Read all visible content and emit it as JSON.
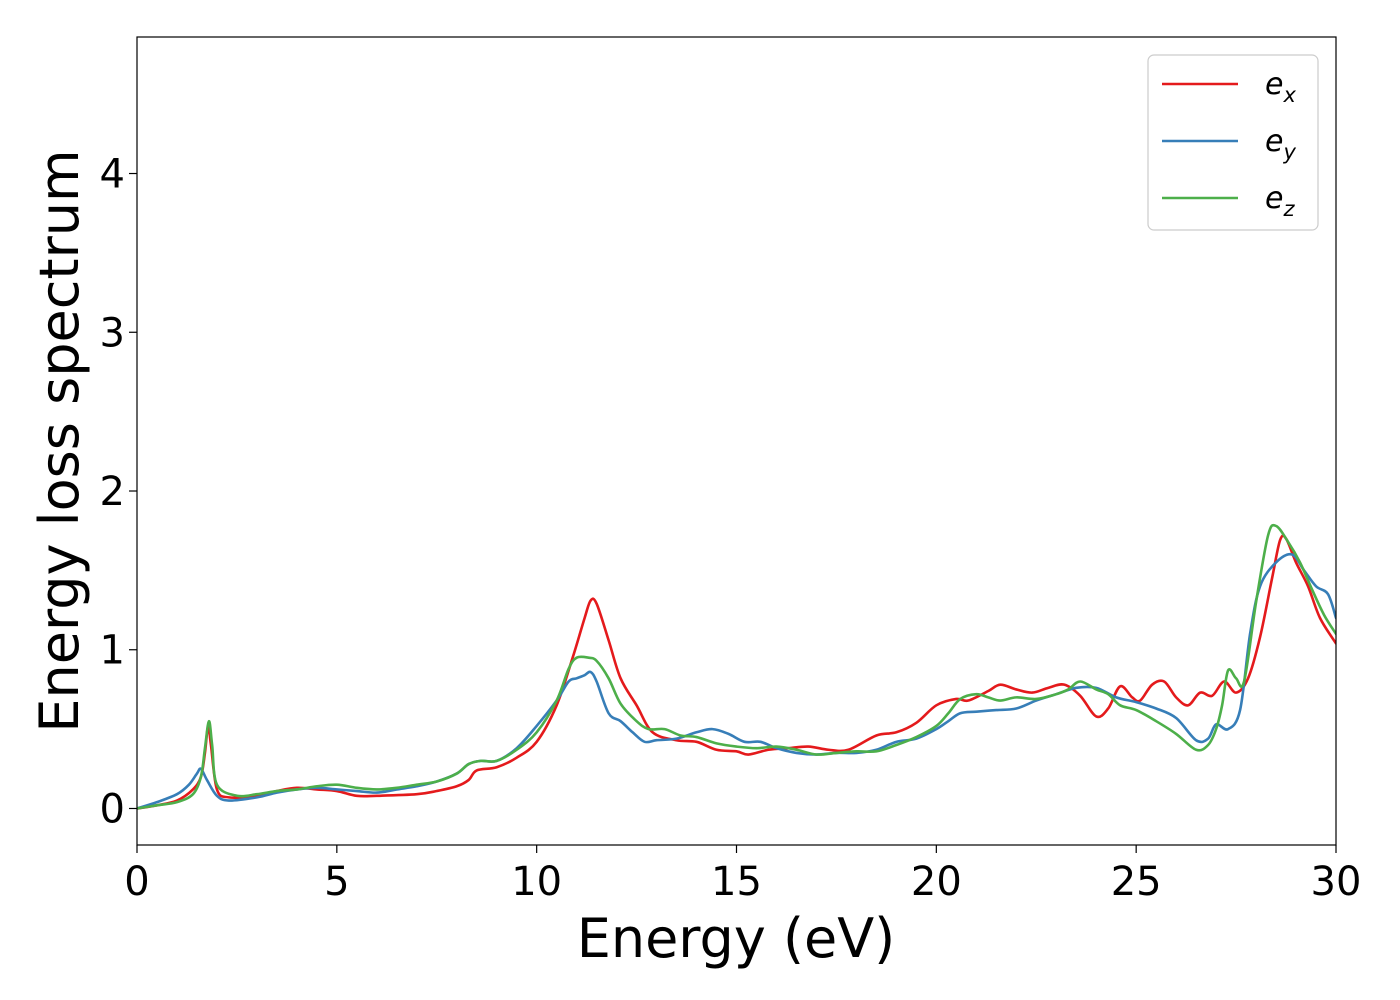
{
  "chart_data": {
    "type": "line",
    "xlabel": "Energy (eV)",
    "ylabel": "Energy loss spectrum",
    "xlim": [
      0,
      30
    ],
    "ylim": [
      -0.23,
      4.86
    ],
    "xticks": [
      0,
      5,
      10,
      15,
      20,
      25,
      30
    ],
    "yticks": [
      0,
      1,
      2,
      3,
      4
    ],
    "grid": false,
    "legend_position": "top-right",
    "series": [
      {
        "name": "e_x",
        "label_base": "e",
        "label_sub": "x",
        "color": "#e41a1c",
        "points": [
          [
            0,
            0
          ],
          [
            0.5,
            0.02
          ],
          [
            1.0,
            0.05
          ],
          [
            1.4,
            0.12
          ],
          [
            1.6,
            0.2
          ],
          [
            1.7,
            0.35
          ],
          [
            1.78,
            0.52
          ],
          [
            1.85,
            0.4
          ],
          [
            2.0,
            0.12
          ],
          [
            2.3,
            0.07
          ],
          [
            3.0,
            0.08
          ],
          [
            3.5,
            0.11
          ],
          [
            4.0,
            0.13
          ],
          [
            4.5,
            0.12
          ],
          [
            5.0,
            0.11
          ],
          [
            5.5,
            0.08
          ],
          [
            6.0,
            0.08
          ],
          [
            7.0,
            0.09
          ],
          [
            7.5,
            0.11
          ],
          [
            8.0,
            0.14
          ],
          [
            8.3,
            0.18
          ],
          [
            8.5,
            0.24
          ],
          [
            9.0,
            0.26
          ],
          [
            9.5,
            0.32
          ],
          [
            10.0,
            0.42
          ],
          [
            10.5,
            0.65
          ],
          [
            10.9,
            0.95
          ],
          [
            11.2,
            1.2
          ],
          [
            11.35,
            1.31
          ],
          [
            11.5,
            1.29
          ],
          [
            11.8,
            1.06
          ],
          [
            12.1,
            0.82
          ],
          [
            12.5,
            0.65
          ],
          [
            12.9,
            0.48
          ],
          [
            13.5,
            0.43
          ],
          [
            14.0,
            0.42
          ],
          [
            14.5,
            0.37
          ],
          [
            15.0,
            0.36
          ],
          [
            15.3,
            0.34
          ],
          [
            15.8,
            0.37
          ],
          [
            16.3,
            0.38
          ],
          [
            16.8,
            0.39
          ],
          [
            17.3,
            0.37
          ],
          [
            17.8,
            0.37
          ],
          [
            18.5,
            0.46
          ],
          [
            19.0,
            0.48
          ],
          [
            19.5,
            0.54
          ],
          [
            20.0,
            0.65
          ],
          [
            20.5,
            0.69
          ],
          [
            20.8,
            0.68
          ],
          [
            21.3,
            0.74
          ],
          [
            21.6,
            0.78
          ],
          [
            22.0,
            0.75
          ],
          [
            22.4,
            0.73
          ],
          [
            22.8,
            0.76
          ],
          [
            23.2,
            0.78
          ],
          [
            23.6,
            0.71
          ],
          [
            24.0,
            0.58
          ],
          [
            24.3,
            0.63
          ],
          [
            24.6,
            0.77
          ],
          [
            24.9,
            0.7
          ],
          [
            25.1,
            0.68
          ],
          [
            25.4,
            0.78
          ],
          [
            25.7,
            0.8
          ],
          [
            26.0,
            0.7
          ],
          [
            26.3,
            0.65
          ],
          [
            26.6,
            0.73
          ],
          [
            26.9,
            0.71
          ],
          [
            27.2,
            0.8
          ],
          [
            27.5,
            0.73
          ],
          [
            27.8,
            0.82
          ],
          [
            28.1,
            1.08
          ],
          [
            28.4,
            1.45
          ],
          [
            28.6,
            1.69
          ],
          [
            28.75,
            1.7
          ],
          [
            29.0,
            1.55
          ],
          [
            29.3,
            1.4
          ],
          [
            29.6,
            1.2
          ],
          [
            30.0,
            1.04
          ]
        ]
      },
      {
        "name": "e_y",
        "label_base": "e",
        "label_sub": "y",
        "color": "#377eb8",
        "points": [
          [
            0,
            0
          ],
          [
            0.5,
            0.04
          ],
          [
            1.0,
            0.09
          ],
          [
            1.3,
            0.15
          ],
          [
            1.5,
            0.22
          ],
          [
            1.6,
            0.25
          ],
          [
            1.75,
            0.18
          ],
          [
            2.0,
            0.08
          ],
          [
            2.3,
            0.05
          ],
          [
            3.0,
            0.07
          ],
          [
            3.5,
            0.1
          ],
          [
            4.0,
            0.12
          ],
          [
            4.5,
            0.13
          ],
          [
            5.0,
            0.12
          ],
          [
            5.5,
            0.11
          ],
          [
            6.0,
            0.1
          ],
          [
            6.5,
            0.12
          ],
          [
            7.0,
            0.14
          ],
          [
            7.5,
            0.17
          ],
          [
            8.0,
            0.22
          ],
          [
            8.3,
            0.28
          ],
          [
            8.6,
            0.3
          ],
          [
            9.0,
            0.3
          ],
          [
            9.5,
            0.38
          ],
          [
            10.0,
            0.52
          ],
          [
            10.5,
            0.68
          ],
          [
            10.8,
            0.8
          ],
          [
            11.0,
            0.82
          ],
          [
            11.2,
            0.84
          ],
          [
            11.35,
            0.86
          ],
          [
            11.5,
            0.8
          ],
          [
            11.8,
            0.6
          ],
          [
            12.1,
            0.55
          ],
          [
            12.4,
            0.48
          ],
          [
            12.7,
            0.42
          ],
          [
            13.0,
            0.43
          ],
          [
            13.5,
            0.44
          ],
          [
            14.0,
            0.48
          ],
          [
            14.4,
            0.5
          ],
          [
            14.8,
            0.47
          ],
          [
            15.2,
            0.42
          ],
          [
            15.6,
            0.42
          ],
          [
            16.0,
            0.38
          ],
          [
            16.5,
            0.35
          ],
          [
            17.0,
            0.34
          ],
          [
            17.5,
            0.35
          ],
          [
            18.0,
            0.35
          ],
          [
            18.5,
            0.37
          ],
          [
            19.0,
            0.42
          ],
          [
            19.5,
            0.44
          ],
          [
            20.0,
            0.5
          ],
          [
            20.3,
            0.55
          ],
          [
            20.6,
            0.6
          ],
          [
            21.0,
            0.61
          ],
          [
            21.5,
            0.62
          ],
          [
            22.0,
            0.63
          ],
          [
            22.5,
            0.68
          ],
          [
            23.0,
            0.72
          ],
          [
            23.5,
            0.76
          ],
          [
            24.0,
            0.76
          ],
          [
            24.5,
            0.7
          ],
          [
            25.0,
            0.67
          ],
          [
            25.5,
            0.63
          ],
          [
            26.0,
            0.57
          ],
          [
            26.5,
            0.43
          ],
          [
            26.8,
            0.44
          ],
          [
            27.0,
            0.53
          ],
          [
            27.3,
            0.5
          ],
          [
            27.6,
            0.62
          ],
          [
            27.85,
            1.1
          ],
          [
            28.1,
            1.4
          ],
          [
            28.5,
            1.55
          ],
          [
            28.9,
            1.6
          ],
          [
            29.2,
            1.5
          ],
          [
            29.5,
            1.4
          ],
          [
            29.8,
            1.35
          ],
          [
            30.0,
            1.2
          ]
        ]
      },
      {
        "name": "e_z",
        "label_base": "e",
        "label_sub": "z",
        "color": "#4daf4a",
        "points": [
          [
            0,
            0
          ],
          [
            0.5,
            0.02
          ],
          [
            1.0,
            0.04
          ],
          [
            1.4,
            0.09
          ],
          [
            1.6,
            0.2
          ],
          [
            1.7,
            0.38
          ],
          [
            1.8,
            0.55
          ],
          [
            1.88,
            0.4
          ],
          [
            2.0,
            0.15
          ],
          [
            2.5,
            0.08
          ],
          [
            3.0,
            0.09
          ],
          [
            3.5,
            0.11
          ],
          [
            4.0,
            0.12
          ],
          [
            4.5,
            0.14
          ],
          [
            5.0,
            0.15
          ],
          [
            5.5,
            0.13
          ],
          [
            6.0,
            0.12
          ],
          [
            6.5,
            0.13
          ],
          [
            7.0,
            0.15
          ],
          [
            7.5,
            0.17
          ],
          [
            8.0,
            0.22
          ],
          [
            8.3,
            0.28
          ],
          [
            8.6,
            0.3
          ],
          [
            9.0,
            0.3
          ],
          [
            9.5,
            0.37
          ],
          [
            10.0,
            0.48
          ],
          [
            10.5,
            0.68
          ],
          [
            10.8,
            0.88
          ],
          [
            11.0,
            0.95
          ],
          [
            11.3,
            0.95
          ],
          [
            11.5,
            0.93
          ],
          [
            11.8,
            0.82
          ],
          [
            12.1,
            0.66
          ],
          [
            12.5,
            0.55
          ],
          [
            12.8,
            0.5
          ],
          [
            13.2,
            0.5
          ],
          [
            13.6,
            0.46
          ],
          [
            14.0,
            0.45
          ],
          [
            14.5,
            0.41
          ],
          [
            15.0,
            0.39
          ],
          [
            15.5,
            0.38
          ],
          [
            16.0,
            0.39
          ],
          [
            16.5,
            0.37
          ],
          [
            17.0,
            0.34
          ],
          [
            17.5,
            0.35
          ],
          [
            18.0,
            0.36
          ],
          [
            18.5,
            0.36
          ],
          [
            19.0,
            0.4
          ],
          [
            19.5,
            0.45
          ],
          [
            20.0,
            0.52
          ],
          [
            20.3,
            0.6
          ],
          [
            20.6,
            0.69
          ],
          [
            21.0,
            0.72
          ],
          [
            21.3,
            0.7
          ],
          [
            21.6,
            0.68
          ],
          [
            22.0,
            0.7
          ],
          [
            22.5,
            0.69
          ],
          [
            23.0,
            0.72
          ],
          [
            23.3,
            0.75
          ],
          [
            23.6,
            0.8
          ],
          [
            24.0,
            0.75
          ],
          [
            24.3,
            0.72
          ],
          [
            24.6,
            0.65
          ],
          [
            25.0,
            0.62
          ],
          [
            25.5,
            0.55
          ],
          [
            26.0,
            0.47
          ],
          [
            26.5,
            0.37
          ],
          [
            26.8,
            0.4
          ],
          [
            27.0,
            0.5
          ],
          [
            27.15,
            0.65
          ],
          [
            27.3,
            0.87
          ],
          [
            27.5,
            0.82
          ],
          [
            27.7,
            0.8
          ],
          [
            28.0,
            1.3
          ],
          [
            28.3,
            1.72
          ],
          [
            28.5,
            1.78
          ],
          [
            28.8,
            1.68
          ],
          [
            29.1,
            1.55
          ],
          [
            29.4,
            1.38
          ],
          [
            29.7,
            1.22
          ],
          [
            30.0,
            1.1
          ]
        ]
      }
    ]
  }
}
